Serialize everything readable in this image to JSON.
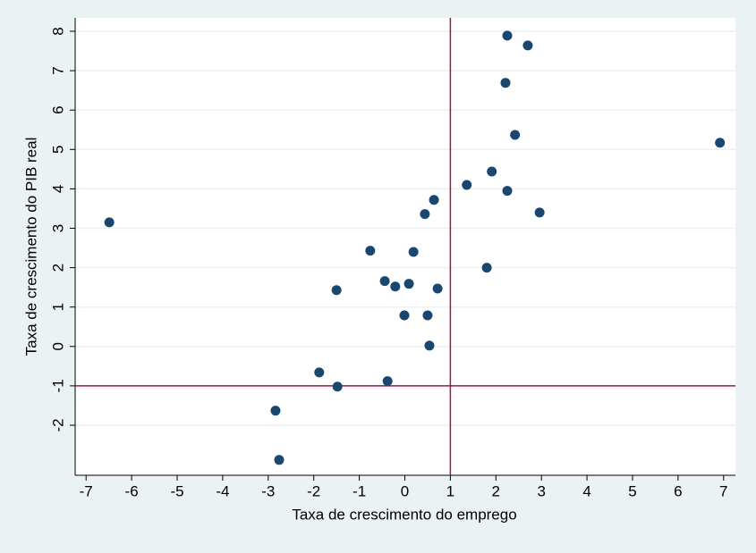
{
  "chart_data": {
    "type": "scatter",
    "xlabel": "Taxa de crescimento do emprego",
    "ylabel": "Taxa de crescimento do PIB real",
    "x": [
      2.25,
      2.7,
      2.21,
      2.42,
      6.92,
      1.91,
      1.36,
      2.25,
      0.64,
      0.44,
      2.96,
      -6.49,
      -0.76,
      0.19,
      1.8,
      -0.44,
      0.09,
      -0.21,
      0.72,
      -1.5,
      -0.01,
      0.5,
      0.54,
      -1.88,
      -1.48,
      -0.38,
      -2.84,
      -2.76
    ],
    "series": [
      {
        "color": "#1a476f",
        "values": [
          7.89,
          7.64,
          6.69,
          5.37,
          5.17,
          4.44,
          4.1,
          3.95,
          3.72,
          3.36,
          3.4,
          3.15,
          2.43,
          2.4,
          2.0,
          1.66,
          1.59,
          1.52,
          1.47,
          1.43,
          0.79,
          0.79,
          0.02,
          -0.66,
          -1.02,
          -0.88,
          -1.63,
          -2.88
        ]
      }
    ],
    "xlim": [
      -7.24,
      7.26
    ],
    "ylim": [
      -3.27,
      8.34
    ],
    "xticks": [
      -7,
      -6,
      -5,
      -4,
      -3,
      -2,
      -1,
      0,
      1,
      2,
      3,
      4,
      5,
      6,
      7
    ],
    "yticks": [
      -2,
      -1,
      0,
      1,
      2,
      3,
      4,
      5,
      6,
      7,
      8
    ],
    "grid": true,
    "reference_lines": {
      "x": 1,
      "y": -1,
      "color": "#a0193c"
    }
  }
}
